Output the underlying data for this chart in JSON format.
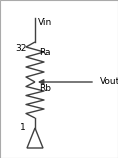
{
  "bg_color": "#ffffff",
  "border_color": "#aaaaaa",
  "wire_color": "#404040",
  "text_color": "#000000",
  "vin_label": "Vin",
  "vout_label": "Vout",
  "ra_label": "Ra",
  "rb_label": "Rb",
  "top_num": "32",
  "bot_num": "1",
  "fig_width": 1.18,
  "fig_height": 1.58,
  "dpi": 100,
  "lw": 1.0
}
